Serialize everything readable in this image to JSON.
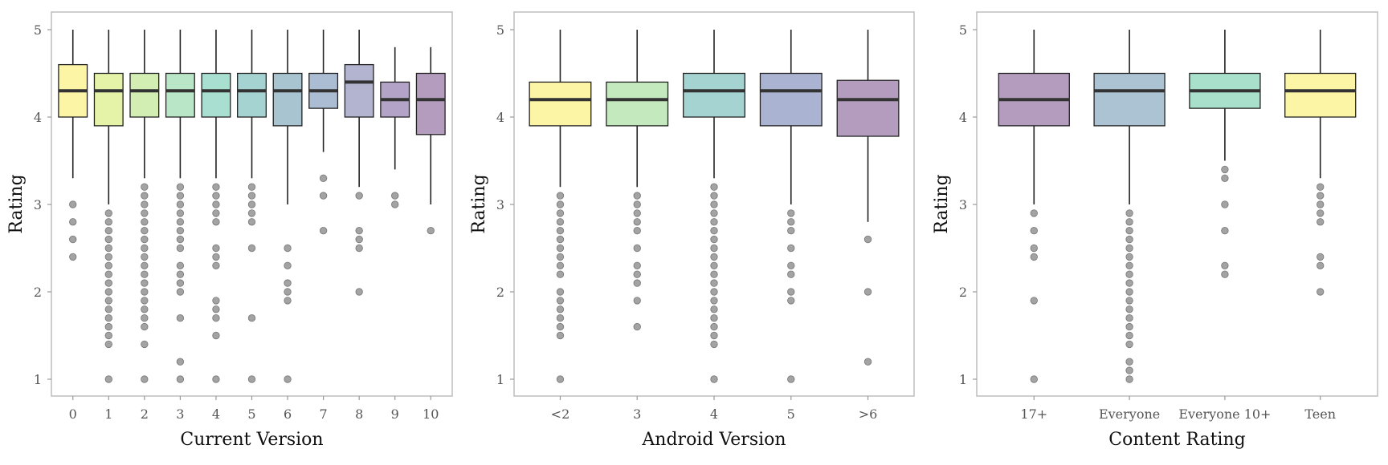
{
  "chart_data": [
    {
      "type": "box",
      "xlabel": "Current Version",
      "ylabel": "Rating",
      "ylim": [
        1,
        5
      ],
      "yticks": [
        "1",
        "2",
        "3",
        "4",
        "5"
      ],
      "categories": [
        "0",
        "1",
        "2",
        "3",
        "4",
        "5",
        "6",
        "7",
        "8",
        "9",
        "10"
      ],
      "colors": [
        "#fcf5a6",
        "#e4f3a8",
        "#d2eeb2",
        "#b8e6c6",
        "#a9dfd1",
        "#a5d3d2",
        "#a7c4d0",
        "#abbdd3",
        "#b3b4d0",
        "#b3a3c6",
        "#b49cbf"
      ],
      "boxes": [
        {
          "low": 3.3,
          "q1": 4.0,
          "median": 4.3,
          "q3": 4.6,
          "high": 5.0,
          "outliers": [
            3.0,
            2.8,
            2.6,
            2.4
          ]
        },
        {
          "low": 3.0,
          "q1": 3.9,
          "median": 4.3,
          "q3": 4.5,
          "high": 5.0,
          "outliers": [
            2.9,
            2.8,
            2.7,
            2.6,
            2.5,
            2.4,
            2.3,
            2.2,
            2.1,
            2.0,
            1.9,
            1.8,
            1.7,
            1.6,
            1.5,
            1.4,
            1.0
          ]
        },
        {
          "low": 3.3,
          "q1": 4.0,
          "median": 4.3,
          "q3": 4.5,
          "high": 5.0,
          "outliers": [
            3.2,
            3.1,
            3.0,
            2.9,
            2.8,
            2.7,
            2.6,
            2.5,
            2.4,
            2.3,
            2.2,
            2.1,
            2.0,
            1.9,
            1.8,
            1.7,
            1.6,
            1.4,
            1.0
          ]
        },
        {
          "low": 3.3,
          "q1": 4.0,
          "median": 4.3,
          "q3": 4.5,
          "high": 5.0,
          "outliers": [
            3.2,
            3.1,
            3.0,
            2.9,
            2.8,
            2.7,
            2.6,
            2.5,
            2.3,
            2.2,
            2.1,
            2.0,
            1.7,
            1.2,
            1.0
          ]
        },
        {
          "low": 3.3,
          "q1": 4.0,
          "median": 4.3,
          "q3": 4.5,
          "high": 5.0,
          "outliers": [
            3.2,
            3.1,
            3.0,
            2.9,
            2.8,
            2.5,
            2.4,
            2.3,
            1.9,
            1.8,
            1.7,
            1.5,
            1.0
          ]
        },
        {
          "low": 3.3,
          "q1": 4.0,
          "median": 4.3,
          "q3": 4.5,
          "high": 5.0,
          "outliers": [
            3.2,
            3.1,
            3.0,
            2.9,
            2.8,
            2.5,
            1.7,
            1.0
          ]
        },
        {
          "low": 3.0,
          "q1": 3.9,
          "median": 4.3,
          "q3": 4.5,
          "high": 5.0,
          "outliers": [
            2.5,
            2.3,
            2.1,
            2.0,
            1.9,
            1.0
          ]
        },
        {
          "low": 3.6,
          "q1": 4.1,
          "median": 4.3,
          "q3": 4.5,
          "high": 5.0,
          "outliers": [
            3.3,
            3.1,
            2.7
          ]
        },
        {
          "low": 3.2,
          "q1": 4.0,
          "median": 4.4,
          "q3": 4.6,
          "high": 5.0,
          "outliers": [
            3.1,
            2.7,
            2.6,
            2.5,
            2.0
          ]
        },
        {
          "low": 3.4,
          "q1": 4.0,
          "median": 4.2,
          "q3": 4.4,
          "high": 4.8,
          "outliers": [
            3.1,
            3.0
          ]
        },
        {
          "low": 3.0,
          "q1": 3.8,
          "median": 4.2,
          "q3": 4.5,
          "high": 4.8,
          "outliers": [
            2.7
          ]
        }
      ]
    },
    {
      "type": "box",
      "xlabel": "Android Version",
      "ylabel": "Rating",
      "ylim": [
        1,
        5
      ],
      "yticks": [
        "1",
        "2",
        "3",
        "4",
        "5"
      ],
      "categories": [
        "<2",
        "3",
        "4",
        "5",
        ">6"
      ],
      "colors": [
        "#fcf5a6",
        "#c4e9bf",
        "#a5d3d2",
        "#abb3d2",
        "#b49cbf"
      ],
      "boxes": [
        {
          "low": 3.2,
          "q1": 3.9,
          "median": 4.2,
          "q3": 4.4,
          "high": 5.0,
          "outliers": [
            3.1,
            3.0,
            2.9,
            2.8,
            2.7,
            2.6,
            2.5,
            2.4,
            2.3,
            2.2,
            2.0,
            1.9,
            1.8,
            1.7,
            1.6,
            1.5,
            1.0
          ]
        },
        {
          "low": 3.2,
          "q1": 3.9,
          "median": 4.2,
          "q3": 4.4,
          "high": 5.0,
          "outliers": [
            3.1,
            3.0,
            2.9,
            2.8,
            2.7,
            2.5,
            2.3,
            2.2,
            2.1,
            1.9,
            1.6
          ]
        },
        {
          "low": 3.3,
          "q1": 4.0,
          "median": 4.3,
          "q3": 4.5,
          "high": 5.0,
          "outliers": [
            3.2,
            3.1,
            3.0,
            2.9,
            2.8,
            2.7,
            2.6,
            2.5,
            2.4,
            2.3,
            2.2,
            2.1,
            2.0,
            1.9,
            1.8,
            1.7,
            1.6,
            1.5,
            1.4,
            1.0
          ]
        },
        {
          "low": 3.0,
          "q1": 3.9,
          "median": 4.3,
          "q3": 4.5,
          "high": 5.0,
          "outliers": [
            2.9,
            2.8,
            2.7,
            2.5,
            2.3,
            2.2,
            2.0,
            1.9,
            1.0
          ]
        },
        {
          "low": 2.8,
          "q1": 3.78,
          "median": 4.2,
          "q3": 4.42,
          "high": 5.0,
          "outliers": [
            2.6,
            2.0,
            1.2
          ]
        }
      ]
    },
    {
      "type": "box",
      "xlabel": "Content Rating",
      "ylabel": "Rating",
      "ylim": [
        1,
        5
      ],
      "yticks": [
        "1",
        "2",
        "3",
        "4",
        "5"
      ],
      "categories": [
        "17+",
        "Everyone",
        "Everyone 10+",
        "Teen"
      ],
      "colors": [
        "#b49cbf",
        "#abc3d2",
        "#a9e0cc",
        "#fcf5a6"
      ],
      "boxes": [
        {
          "low": 3.0,
          "q1": 3.9,
          "median": 4.2,
          "q3": 4.5,
          "high": 5.0,
          "outliers": [
            2.9,
            2.7,
            2.5,
            2.4,
            1.9,
            1.0
          ]
        },
        {
          "low": 3.0,
          "q1": 3.9,
          "median": 4.3,
          "q3": 4.5,
          "high": 5.0,
          "outliers": [
            2.9,
            2.8,
            2.7,
            2.6,
            2.5,
            2.4,
            2.3,
            2.2,
            2.1,
            2.0,
            1.9,
            1.8,
            1.7,
            1.6,
            1.5,
            1.4,
            1.2,
            1.1,
            1.0
          ]
        },
        {
          "low": 3.5,
          "q1": 4.1,
          "median": 4.3,
          "q3": 4.5,
          "high": 5.0,
          "outliers": [
            3.4,
            3.3,
            3.0,
            2.7,
            2.3,
            2.2
          ]
        },
        {
          "low": 3.3,
          "q1": 4.0,
          "median": 4.3,
          "q3": 4.5,
          "high": 5.0,
          "outliers": [
            3.2,
            3.1,
            3.0,
            2.9,
            2.8,
            2.4,
            2.3,
            2.0
          ]
        }
      ]
    }
  ]
}
